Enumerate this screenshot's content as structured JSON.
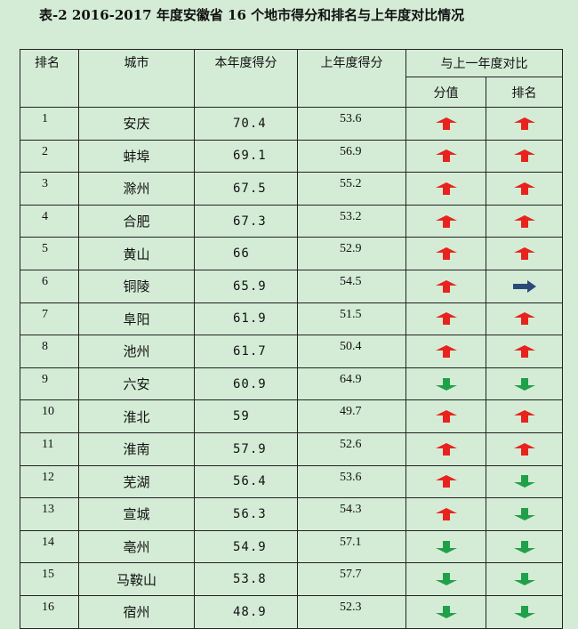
{
  "title": "表-2    2016-2017 年度安徽省 16 个地市得分和排名与上年度对比情况",
  "headers": {
    "rank": "排名",
    "city": "城市",
    "current_score": "本年度得分",
    "previous_score": "上年度得分",
    "comparison": "与上一年度对比",
    "score_change": "分值",
    "rank_change": "排名"
  },
  "colors": {
    "up": "#e8231e",
    "down": "#21a04a",
    "same": "#2b4a7a",
    "background": "#d4ecd6"
  },
  "rows": [
    {
      "rank": "1",
      "city": "安庆",
      "current": "70.4",
      "previous": "53.6",
      "score_dir": "up",
      "rank_dir": "up"
    },
    {
      "rank": "2",
      "city": "蚌埠",
      "current": "69.1",
      "previous": "56.9",
      "score_dir": "up",
      "rank_dir": "up"
    },
    {
      "rank": "3",
      "city": "滁州",
      "current": "67.5",
      "previous": "55.2",
      "score_dir": "up",
      "rank_dir": "up"
    },
    {
      "rank": "4",
      "city": "合肥",
      "current": "67.3",
      "previous": "53.2",
      "score_dir": "up",
      "rank_dir": "up"
    },
    {
      "rank": "5",
      "city": "黄山",
      "current": "66",
      "previous": "52.9",
      "score_dir": "up",
      "rank_dir": "up"
    },
    {
      "rank": "6",
      "city": "铜陵",
      "current": "65.9",
      "previous": "54.5",
      "score_dir": "up",
      "rank_dir": "same"
    },
    {
      "rank": "7",
      "city": "阜阳",
      "current": "61.9",
      "previous": "51.5",
      "score_dir": "up",
      "rank_dir": "up"
    },
    {
      "rank": "8",
      "city": "池州",
      "current": "61.7",
      "previous": "50.4",
      "score_dir": "up",
      "rank_dir": "up"
    },
    {
      "rank": "9",
      "city": "六安",
      "current": "60.9",
      "previous": "64.9",
      "score_dir": "down",
      "rank_dir": "down"
    },
    {
      "rank": "10",
      "city": "淮北",
      "current": "59",
      "previous": "49.7",
      "score_dir": "up",
      "rank_dir": "up"
    },
    {
      "rank": "11",
      "city": "淮南",
      "current": "57.9",
      "previous": "52.6",
      "score_dir": "up",
      "rank_dir": "up"
    },
    {
      "rank": "12",
      "city": "芜湖",
      "current": "56.4",
      "previous": "53.6",
      "score_dir": "up",
      "rank_dir": "down"
    },
    {
      "rank": "13",
      "city": "宣城",
      "current": "56.3",
      "previous": "54.3",
      "score_dir": "up",
      "rank_dir": "down"
    },
    {
      "rank": "14",
      "city": "亳州",
      "current": "54.9",
      "previous": "57.1",
      "score_dir": "down",
      "rank_dir": "down"
    },
    {
      "rank": "15",
      "city": "马鞍山",
      "current": "53.8",
      "previous": "57.7",
      "score_dir": "down",
      "rank_dir": "down"
    },
    {
      "rank": "16",
      "city": "宿州",
      "current": "48.9",
      "previous": "52.3",
      "score_dir": "down",
      "rank_dir": "down"
    }
  ]
}
